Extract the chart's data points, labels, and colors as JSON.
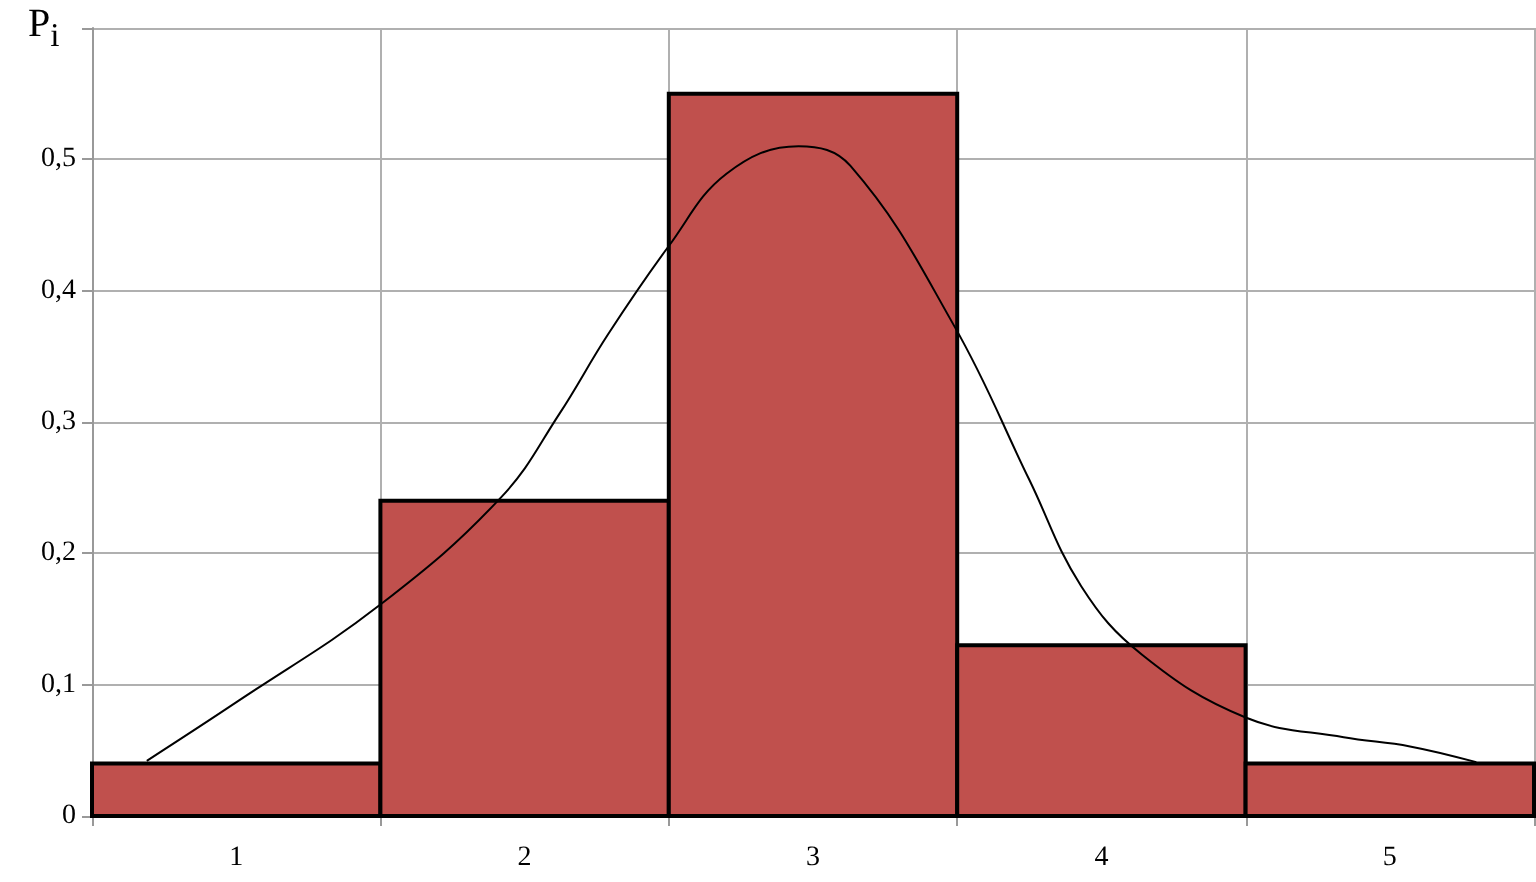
{
  "chart_data": {
    "type": "histogram",
    "ylabel": "P$_{i}$",
    "bins": [
      0.5,
      1.5,
      2.5,
      3.5,
      4.5,
      5.5
    ],
    "series": [
      {
        "color": "#c0504d",
        "values": [
          0.04,
          0.24,
          0.55,
          0.13,
          0.04
        ]
      },
      {
        "type": "line",
        "color": "#000000",
        "x": [
          0.69,
          1.01,
          1.5,
          1.92,
          2.12,
          2.29,
          2.5,
          2.7,
          2.95,
          3.13,
          3.49,
          3.75,
          3.93,
          4.14,
          4.5,
          4.84,
          5.07,
          5.3
        ],
        "values": [
          0.042,
          0.088,
          0.161,
          0.243,
          0.306,
          0.367,
          0.434,
          0.489,
          0.51,
          0.495,
          0.373,
          0.256,
          0.175,
          0.123,
          0.075,
          0.06,
          0.053,
          0.041
        ]
      }
    ],
    "xlim": [
      0.5,
      5.5
    ],
    "xticks": [
      {
        "value": 0.5,
        "label": null
      },
      {
        "value": 1,
        "label": "1"
      },
      {
        "value": 1.5,
        "label": null
      },
      {
        "value": 2,
        "label": "2"
      },
      {
        "value": 2.5,
        "label": null
      },
      {
        "value": 3,
        "label": "3"
      },
      {
        "value": 3.5,
        "label": null
      },
      {
        "value": 4,
        "label": "4"
      },
      {
        "value": 4.5,
        "label": null
      },
      {
        "value": 5,
        "label": "5"
      },
      {
        "value": 5.5,
        "label": null
      }
    ],
    "ylim": [
      0,
      0.6
    ],
    "yticks": [
      {
        "value": 0,
        "label": "0"
      },
      {
        "value": 0.1,
        "label": "0,1"
      },
      {
        "value": 0.2,
        "label": "0,2"
      },
      {
        "value": 0.3,
        "label": "0,3"
      },
      {
        "value": 0.4,
        "label": "0,4"
      },
      {
        "value": 0.5,
        "label": "0,5"
      },
      {
        "value": 0.6,
        "label": null
      }
    ],
    "grid": true,
    "marker": "none",
    "line_style": "solid"
  }
}
